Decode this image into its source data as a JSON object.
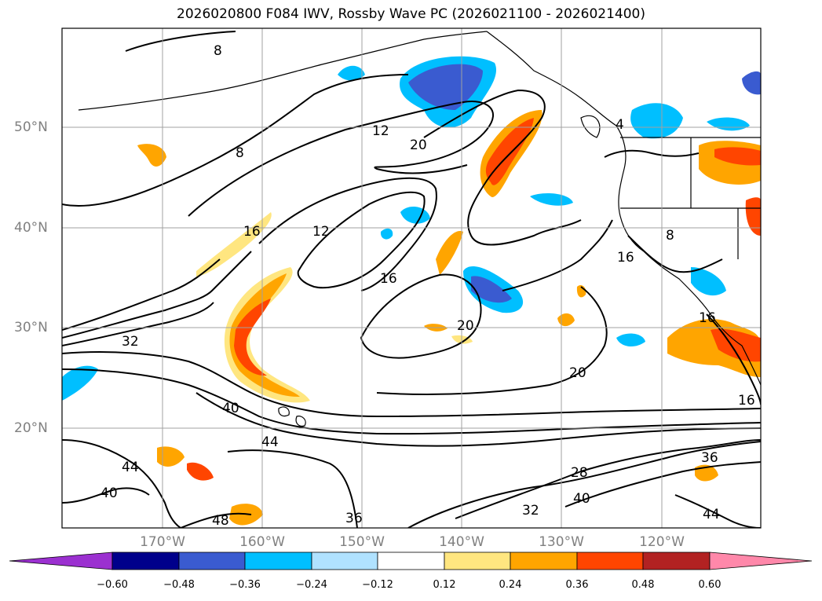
{
  "title": "2026020800 F084 IWV, Rossby Wave PC (2026021100 - 2026021400)",
  "lon_labels": [
    "170°W",
    "160°W",
    "150°W",
    "140°W",
    "130°W",
    "120°W"
  ],
  "lat_labels": [
    "50°N",
    "40°N",
    "30°N",
    "20°N"
  ],
  "contour_labels": [
    "8",
    "8",
    "12",
    "12",
    "16",
    "16",
    "16",
    "20",
    "20",
    "20",
    "4",
    "8",
    "16",
    "16",
    "32",
    "40",
    "44",
    "44",
    "40",
    "48",
    "36",
    "32",
    "28",
    "40",
    "36",
    "44"
  ],
  "colorbar": {
    "ticks": [
      "−0.60",
      "−0.48",
      "−0.36",
      "−0.24",
      "−0.12",
      "0.12",
      "0.24",
      "0.36",
      "0.48",
      "0.60"
    ],
    "colors": [
      "#9b30d0",
      "#00008b",
      "#3a5bd0",
      "#00bfff",
      "#b0e2ff",
      "#ffffff",
      "#ffe680",
      "#ffa500",
      "#ff4500",
      "#b22222",
      "#ff88aa"
    ]
  }
}
